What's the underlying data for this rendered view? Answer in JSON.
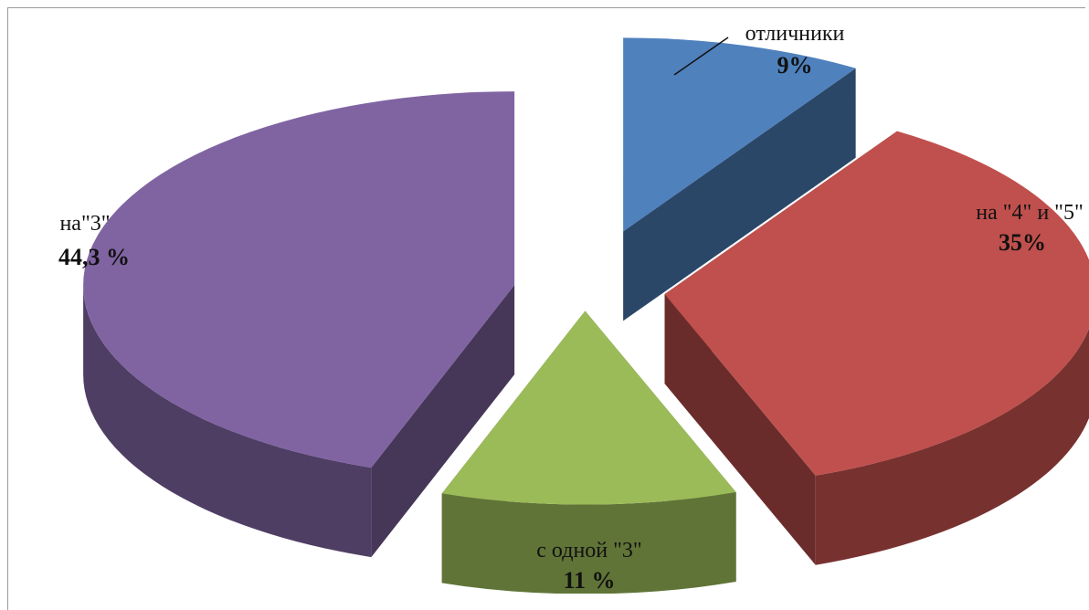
{
  "chart_data": {
    "type": "pie",
    "three_d": true,
    "exploded": true,
    "labels": [
      "отличники",
      "на \"4\" и \"5\"",
      "с одной \"3\"",
      "на\"3\""
    ],
    "values": [
      9,
      35,
      11,
      44.3
    ],
    "value_labels": [
      "9%",
      "35%",
      "11 %",
      "44,3 %"
    ],
    "colors": [
      "#4f81bd",
      "#c0504d",
      "#9bbb59",
      "#8064a2"
    ]
  }
}
